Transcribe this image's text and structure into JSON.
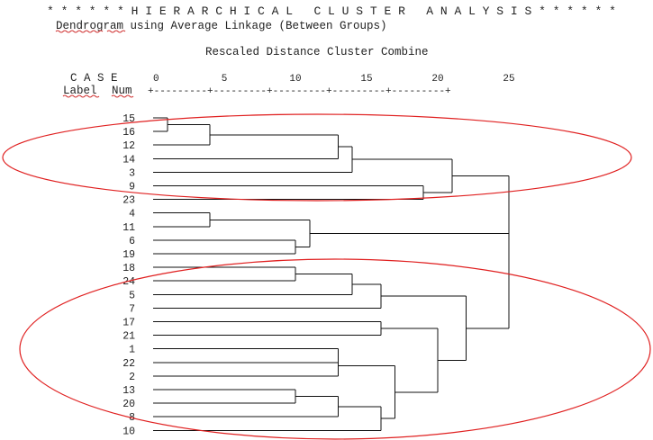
{
  "header": {
    "title": "* * * * * * H I E R A R C H I C A L   C L U S T E R   A N A L Y S I S * * * * * *",
    "subtitle": "Dendrogram using Average Linkage (Between Groups)",
    "scale_caption": "Rescaled Distance Cluster Combine"
  },
  "table_head": {
    "case": "C A S E",
    "label": "Label",
    "num": "Num",
    "axis_ruler": "+---------+---------+---------+---------+---------+"
  },
  "axis_ticks": [
    "0",
    "5",
    "10",
    "15",
    "20",
    "25"
  ],
  "cases": [
    "15",
    "16",
    "12",
    "14",
    "3",
    "9",
    "23",
    "4",
    "11",
    "6",
    "19",
    "18",
    "24",
    "5",
    "7",
    "17",
    "21",
    "1",
    "22",
    "2",
    "13",
    "20",
    "8",
    "10"
  ],
  "merges": [
    {
      "a": "15",
      "b": "16",
      "dist": 1
    },
    {
      "a": "15-16",
      "b": "12",
      "dist": 4
    },
    {
      "a": "4",
      "b": "11",
      "dist": 4
    },
    {
      "a": "6",
      "b": "19",
      "dist": 10
    },
    {
      "a": "18",
      "b": "24",
      "dist": 10
    },
    {
      "a": "13",
      "b": "20",
      "dist": 10
    },
    {
      "a": "4-11",
      "b": "6-19",
      "dist": 11
    },
    {
      "a": "15-16-12",
      "b": "14",
      "dist": 13
    },
    {
      "a": "1",
      "b": "22",
      "dist": 13
    },
    {
      "a": "1-22",
      "b": "2",
      "dist": 13
    },
    {
      "a": "13-20",
      "b": "8",
      "dist": 13
    },
    {
      "a": "15..14",
      "b": "3",
      "dist": 14
    },
    {
      "a": "18-24",
      "b": "5",
      "dist": 14
    },
    {
      "a": "17",
      "b": "21",
      "dist": 16
    },
    {
      "a": "18-24-5",
      "b": "7",
      "dist": 16
    },
    {
      "a": "13-20-8",
      "b": "10",
      "dist": 16
    },
    {
      "a": "1-22-2",
      "b": "13-20-8-10",
      "dist": 17
    },
    {
      "a": "9",
      "b": "23",
      "dist": 19
    },
    {
      "a": "17-21",
      "b": "1..10",
      "dist": 20
    },
    {
      "a": "15..3",
      "b": "9-23",
      "dist": 21
    },
    {
      "a": "18..7",
      "b": "17..10",
      "dist": 22
    },
    {
      "a": "top",
      "b": "4..19",
      "dist": 25
    },
    {
      "a": "top-mid",
      "b": "bottom",
      "dist": 25
    }
  ]
}
